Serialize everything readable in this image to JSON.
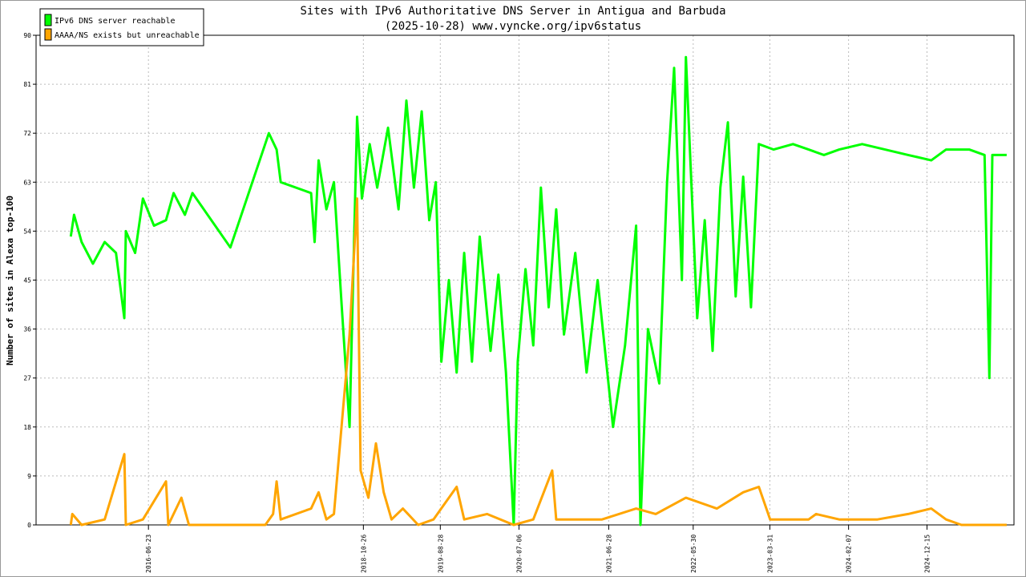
{
  "chart_data": {
    "type": "line",
    "title": "Sites with IPv6 Authoritative DNS Server in Antigua and Barbuda",
    "subtitle": "(2025-10-28) www.vyncke.org/ipv6status",
    "y_label": "Number of sites in Alexa top-100",
    "xlim": [
      "2015-04-03",
      "2025-11-26"
    ],
    "xticks": [
      "2016-06-23",
      "2018-10-26",
      "2019-08-28",
      "2020-07-06",
      "2021-06-28",
      "2022-05-30",
      "2023-03-31",
      "2024-02-07",
      "2024-12-15"
    ],
    "ylim": [
      0,
      90
    ],
    "yticks": [
      0,
      9,
      18,
      27,
      36,
      45,
      54,
      63,
      72,
      81,
      90
    ],
    "grid": true,
    "legend": "upper left",
    "series": [
      {
        "name": "IPv6 DNS server reachable",
        "color": "#00ff00",
        "x": [
          "2015-08-19",
          "2015-09-01",
          "2015-10-01",
          "2015-11-15",
          "2016-01-01",
          "2016-02-15",
          "2016-03-19",
          "2016-03-25",
          "2016-05-01",
          "2016-06-01",
          "2016-07-15",
          "2016-09-01",
          "2016-10-01",
          "2016-11-15",
          "2016-12-15",
          "2017-05-15",
          "2017-10-15",
          "2017-11-15",
          "2017-12-01",
          "2018-04-01",
          "2018-04-15",
          "2018-05-01",
          "2018-06-01",
          "2018-07-01",
          "2018-08-01",
          "2018-09-01",
          "2018-10-01",
          "2018-10-20",
          "2018-11-20",
          "2018-12-20",
          "2019-02-01",
          "2019-03-15",
          "2019-04-15",
          "2019-05-15",
          "2019-06-15",
          "2019-07-15",
          "2019-08-10",
          "2019-09-01",
          "2019-10-01",
          "2019-11-01",
          "2019-12-01",
          "2020-01-01",
          "2020-02-01",
          "2020-03-15",
          "2020-04-15",
          "2020-05-15",
          "2020-06-15",
          "2020-07-01",
          "2020-08-01",
          "2020-09-01",
          "2020-10-01",
          "2020-11-01",
          "2020-12-01",
          "2021-01-01",
          "2021-02-15",
          "2021-04-01",
          "2021-05-15",
          "2021-07-15",
          "2021-09-01",
          "2021-10-15",
          "2021-11-01",
          "2021-12-01",
          "2022-01-15",
          "2022-02-15",
          "2022-03-15",
          "2022-04-15",
          "2022-05-01",
          "2022-06-15",
          "2022-07-15",
          "2022-08-15",
          "2022-09-15",
          "2022-10-15",
          "2022-11-15",
          "2022-12-15",
          "2023-01-15",
          "2023-02-15",
          "2023-04-15",
          "2023-07-01",
          "2023-09-01",
          "2023-11-01",
          "2024-01-01",
          "2024-04-01",
          "2024-07-01",
          "2024-10-01",
          "2025-01-01",
          "2025-03-01",
          "2025-06-01",
          "2025-08-01",
          "2025-08-20",
          "2025-09-01",
          "2025-10-28"
        ],
        "values": [
          53,
          57,
          52,
          48,
          52,
          50,
          38,
          54,
          50,
          60,
          55,
          56,
          61,
          57,
          61,
          51,
          72,
          69,
          63,
          61,
          52,
          67,
          58,
          63,
          40,
          18,
          75,
          60,
          70,
          62,
          73,
          58,
          78,
          62,
          76,
          56,
          63,
          30,
          45,
          28,
          50,
          30,
          53,
          32,
          46,
          28,
          0,
          30,
          47,
          33,
          62,
          40,
          58,
          35,
          50,
          28,
          45,
          18,
          33,
          55,
          0,
          36,
          26,
          63,
          84,
          45,
          86,
          38,
          56,
          32,
          62,
          74,
          42,
          64,
          40,
          70,
          69,
          70,
          69,
          68,
          69,
          70,
          69,
          68,
          67,
          69,
          69,
          68,
          27,
          68,
          68
        ]
      },
      {
        "name": "AAAA/NS exists but unreachable",
        "color": "#ffa500",
        "x": [
          "2015-08-19",
          "2015-08-25",
          "2015-10-01",
          "2016-01-01",
          "2016-03-19",
          "2016-03-25",
          "2016-06-01",
          "2016-09-01",
          "2016-09-10",
          "2016-11-01",
          "2016-12-01",
          "2017-10-01",
          "2017-11-01",
          "2017-11-15",
          "2017-12-01",
          "2018-04-01",
          "2018-05-01",
          "2018-06-01",
          "2018-07-01",
          "2018-09-01",
          "2018-10-01",
          "2018-10-15",
          "2018-11-15",
          "2018-12-15",
          "2019-01-15",
          "2019-02-15",
          "2019-04-01",
          "2019-06-01",
          "2019-08-01",
          "2019-11-01",
          "2019-12-01",
          "2020-03-01",
          "2020-06-15",
          "2020-09-01",
          "2020-11-15",
          "2020-12-01",
          "2021-06-01",
          "2021-10-15",
          "2022-01-01",
          "2022-05-01",
          "2022-09-01",
          "2022-12-15",
          "2023-02-15",
          "2023-04-01",
          "2023-09-01",
          "2023-10-01",
          "2024-01-01",
          "2024-06-01",
          "2024-10-01",
          "2025-01-01",
          "2025-03-01",
          "2025-05-01",
          "2025-10-28"
        ],
        "values": [
          0,
          2,
          0,
          1,
          13,
          0,
          1,
          8,
          0,
          5,
          0,
          0,
          2,
          8,
          1,
          3,
          6,
          1,
          2,
          35,
          60,
          10,
          5,
          15,
          6,
          1,
          3,
          0,
          1,
          7,
          1,
          2,
          0,
          1,
          10,
          1,
          1,
          3,
          2,
          5,
          3,
          6,
          7,
          1,
          1,
          2,
          1,
          1,
          2,
          3,
          1,
          0,
          0
        ]
      }
    ]
  }
}
